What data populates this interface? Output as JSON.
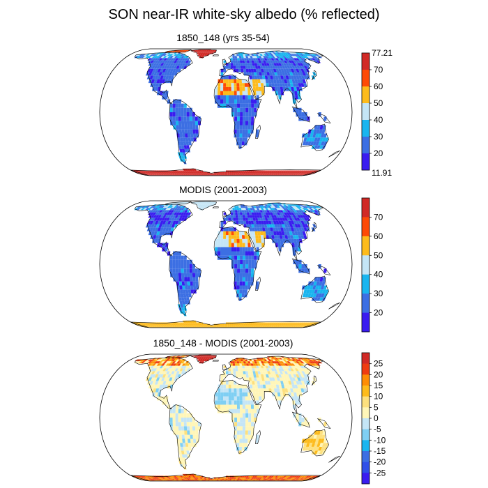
{
  "title": "SON near-IR white-sky albedo (% reflected)",
  "panels": [
    {
      "id": "model",
      "title": "1850_148 (yrs 35-54)",
      "colorbar": {
        "min_label": "11.91",
        "max_label": "77.21",
        "ticks": [
          "20",
          "30",
          "40",
          "50",
          "60",
          "70"
        ],
        "colors": [
          "#3a1cf0",
          "#3c6fe3",
          "#19b5ef",
          "#c4e5f6",
          "#fdbb1c",
          "#fd4a06",
          "#d12a26"
        ]
      }
    },
    {
      "id": "obs",
      "title": "MODIS (2001-2003)",
      "colorbar": {
        "min_label": "",
        "max_label": "",
        "ticks": [
          "20",
          "30",
          "40",
          "50",
          "60",
          "70"
        ],
        "colors": [
          "#3a1cf0",
          "#3c6fe3",
          "#19b5ef",
          "#c4e5f6",
          "#fdbb1c",
          "#fd4a06",
          "#d12a26"
        ]
      }
    },
    {
      "id": "diff",
      "title": "1850_148 - MODIS (2001-2003)",
      "colorbar": {
        "min_label": "",
        "max_label": "",
        "ticks": [
          "25",
          "20",
          "15",
          "10",
          "5",
          "0",
          "-5",
          "-10",
          "-15",
          "-20",
          "-25"
        ],
        "colors": [
          "#d12a26",
          "#ee3c11",
          "#fd8d05",
          "#fdbb1c",
          "#fde07e",
          "#fff6b8",
          "#c4e5f6",
          "#7fcff3",
          "#19b5ef",
          "#3c6fe3",
          "#3050e8",
          "#3a1cf0"
        ]
      }
    }
  ]
}
